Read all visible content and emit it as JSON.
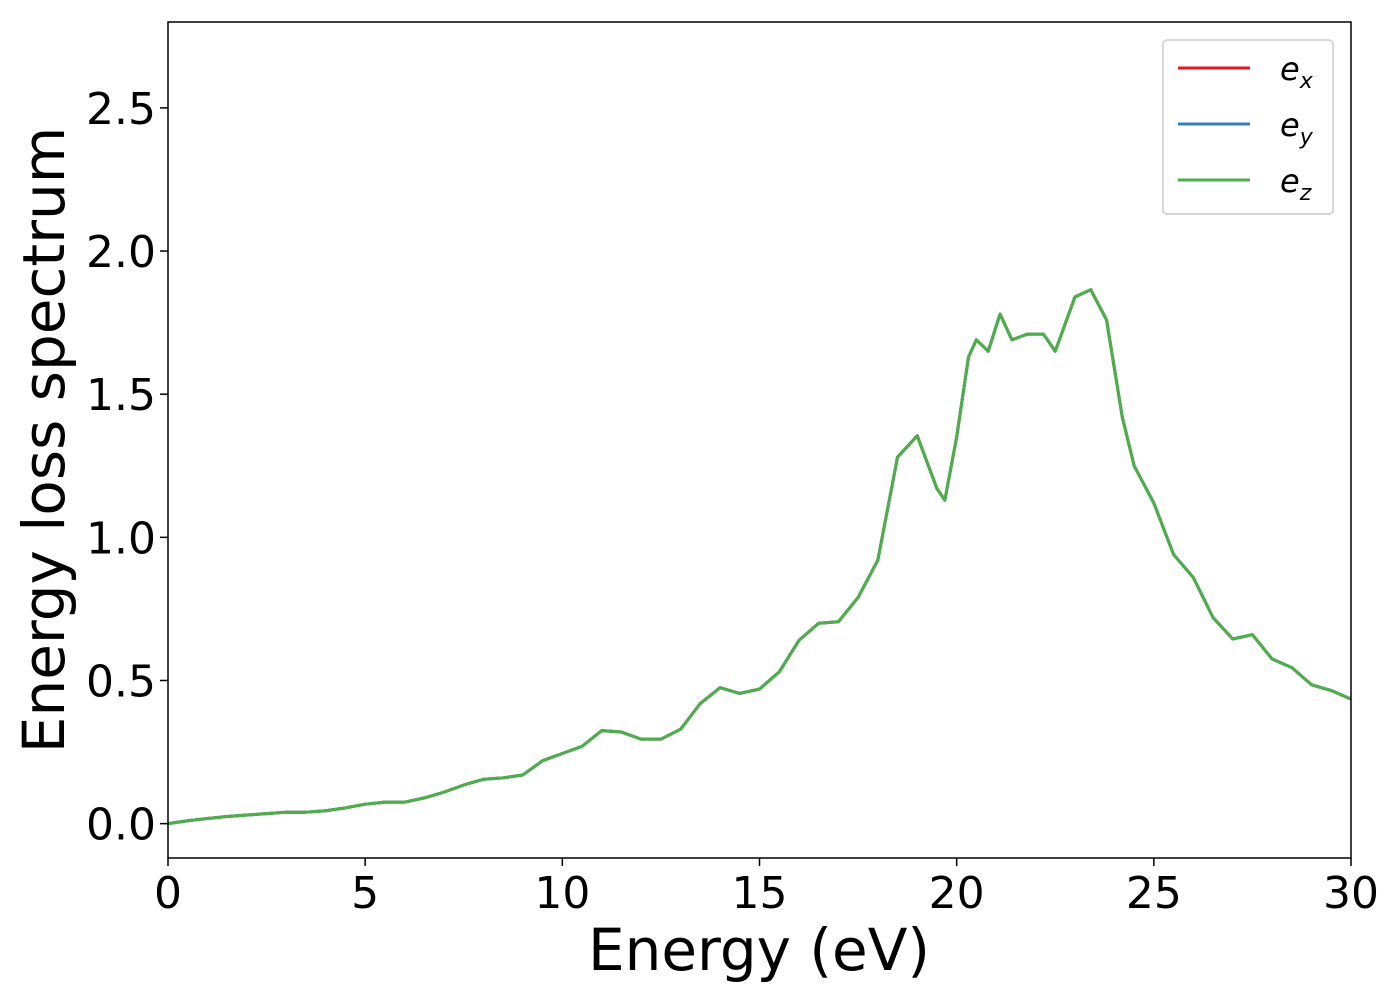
{
  "chart_data": {
    "type": "line",
    "xlabel": "Energy (eV)",
    "ylabel": "Energy loss spectrum",
    "xlim": [
      0,
      30
    ],
    "ylim": [
      -0.12,
      2.8
    ],
    "xticks": [
      0,
      5,
      10,
      15,
      20,
      25,
      30
    ],
    "yticks": [
      {
        "value": 0,
        "label": "0.0"
      },
      0.5,
      {
        "value": 1,
        "label": "1.0"
      },
      1.5,
      {
        "value": 2,
        "label": "2.0"
      },
      2.5
    ],
    "legend": "upper right",
    "x": [
      0,
      0.5,
      1,
      1.5,
      2,
      2.5,
      3,
      3.5,
      4,
      4.5,
      5,
      5.5,
      6,
      6.5,
      7,
      7.5,
      8,
      8.5,
      9,
      9.5,
      10,
      10.5,
      11,
      11.5,
      12,
      12.5,
      13,
      13.5,
      14,
      14.5,
      15,
      15.5,
      16,
      16.5,
      17,
      17.5,
      18,
      18.5,
      19,
      19.5,
      19.7,
      20,
      20.3,
      20.5,
      20.8,
      21.1,
      21.4,
      21.8,
      22.2,
      22.5,
      23,
      23.4,
      23.8,
      24.2,
      24.5,
      25,
      25.5,
      26,
      26.5,
      27,
      27.5,
      28,
      28.5,
      29,
      29.5,
      30
    ],
    "series": [
      {
        "name": "ex",
        "color": "#e41a1c",
        "values": [
          0,
          0.01,
          0.018,
          0.025,
          0.03,
          0.035,
          0.04,
          0.04,
          0.045,
          0.055,
          0.068,
          0.075,
          0.075,
          0.09,
          0.11,
          0.135,
          0.155,
          0.16,
          0.17,
          0.22,
          0.245,
          0.27,
          0.325,
          0.32,
          0.295,
          0.295,
          0.33,
          0.42,
          0.475,
          0.455,
          0.47,
          0.53,
          0.64,
          0.7,
          0.705,
          0.79,
          0.92,
          1.28,
          1.355,
          1.17,
          1.13,
          1.35,
          1.63,
          1.69,
          1.65,
          1.78,
          1.69,
          1.71,
          1.71,
          1.65,
          1.84,
          1.865,
          1.76,
          1.42,
          1.25,
          1.12,
          0.94,
          0.86,
          0.72,
          0.645,
          0.66,
          0.575,
          0.545,
          0.485,
          0.465,
          0.435
        ]
      },
      {
        "name": "ey",
        "color": "#377eb8",
        "values": [
          0,
          0.01,
          0.018,
          0.025,
          0.03,
          0.035,
          0.04,
          0.04,
          0.045,
          0.055,
          0.068,
          0.075,
          0.075,
          0.09,
          0.11,
          0.135,
          0.155,
          0.16,
          0.17,
          0.22,
          0.245,
          0.27,
          0.325,
          0.32,
          0.295,
          0.295,
          0.33,
          0.42,
          0.475,
          0.455,
          0.47,
          0.53,
          0.64,
          0.7,
          0.705,
          0.79,
          0.92,
          1.28,
          1.355,
          1.17,
          1.13,
          1.35,
          1.63,
          1.69,
          1.65,
          1.78,
          1.69,
          1.71,
          1.71,
          1.65,
          1.84,
          1.865,
          1.76,
          1.42,
          1.25,
          1.12,
          0.94,
          0.86,
          0.72,
          0.645,
          0.66,
          0.575,
          0.545,
          0.485,
          0.465,
          0.435
        ]
      },
      {
        "name": "ez",
        "color": "#4daf4a",
        "values": [
          0,
          0.01,
          0.018,
          0.025,
          0.03,
          0.035,
          0.04,
          0.04,
          0.045,
          0.055,
          0.068,
          0.075,
          0.075,
          0.09,
          0.11,
          0.135,
          0.155,
          0.16,
          0.17,
          0.22,
          0.245,
          0.27,
          0.325,
          0.32,
          0.295,
          0.295,
          0.33,
          0.42,
          0.475,
          0.455,
          0.47,
          0.53,
          0.64,
          0.7,
          0.705,
          0.79,
          0.92,
          1.28,
          1.355,
          1.17,
          1.13,
          1.35,
          1.63,
          1.69,
          1.65,
          1.78,
          1.69,
          1.71,
          1.71,
          1.65,
          1.84,
          1.865,
          1.76,
          1.42,
          1.25,
          1.12,
          0.94,
          0.86,
          0.72,
          0.645,
          0.66,
          0.575,
          0.545,
          0.485,
          0.465,
          0.435
        ]
      }
    ]
  }
}
